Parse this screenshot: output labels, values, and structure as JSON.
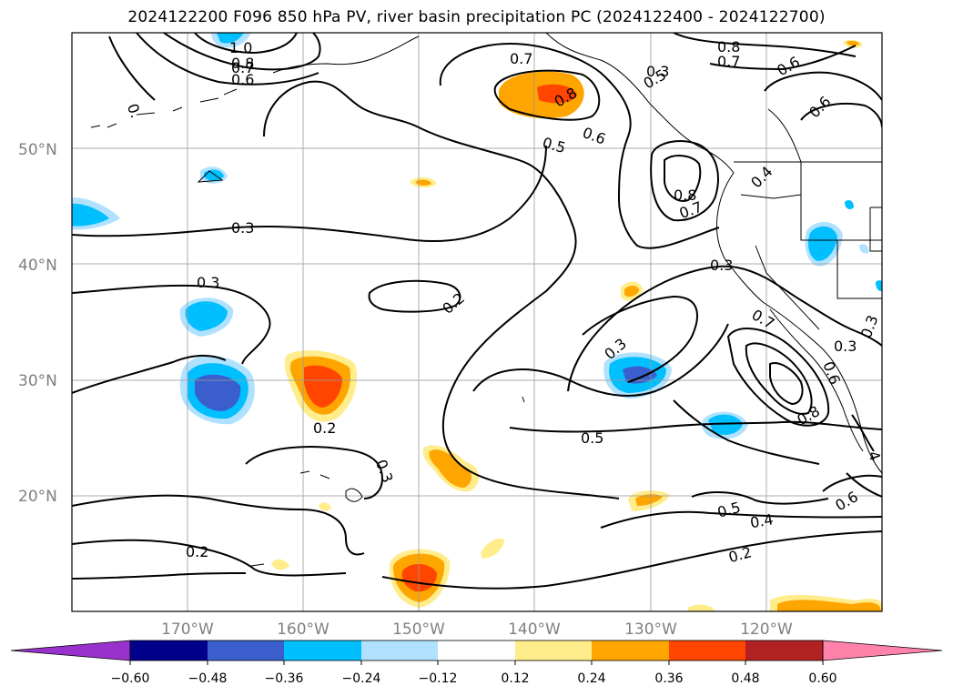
{
  "title": "2024122200 F096 850 hPa PV, river basin precipitation PC (2024122400 - 2024122700)",
  "map": {
    "lon_range": [
      -180,
      -110
    ],
    "lat_range": [
      10,
      60
    ],
    "gridlines": true,
    "lat_labels": [
      "50°N",
      "40°N",
      "30°N",
      "20°N"
    ],
    "lon_labels": [
      "170°W",
      "160°W",
      "150°W",
      "140°W",
      "130°W",
      "120°W"
    ]
  },
  "contour_labels": [
    "1.0",
    "0.8",
    "0.7",
    "0.6",
    "0.",
    "0.7",
    "0.8",
    "0.5",
    "0.6",
    "0.5",
    "0.8",
    "0.6",
    "0.6",
    "0.7",
    "0.8",
    "0.7",
    "0.4",
    "0.3",
    "0.3",
    "0.3",
    "0.2",
    "0.3",
    "0.2",
    "0.3",
    "0.5",
    "0.5",
    "0.4",
    "0.2",
    "0.2",
    "0.3",
    "0.3",
    "0.8",
    "0.6",
    "0.6",
    "0.3",
    "0.7",
    "4"
  ],
  "colorbar": {
    "ticks": [
      "−0.60",
      "−0.48",
      "−0.36",
      "−0.24",
      "−0.12",
      "0.12",
      "0.24",
      "0.36",
      "0.48",
      "0.60"
    ],
    "colors": [
      "#9932cc",
      "#00008b",
      "#3a5fcd",
      "#00bfff",
      "#b0e2ff",
      "#ffffff",
      "#ffec8b",
      "#ffa500",
      "#ff4500",
      "#b22222",
      "#ff82ab"
    ]
  }
}
